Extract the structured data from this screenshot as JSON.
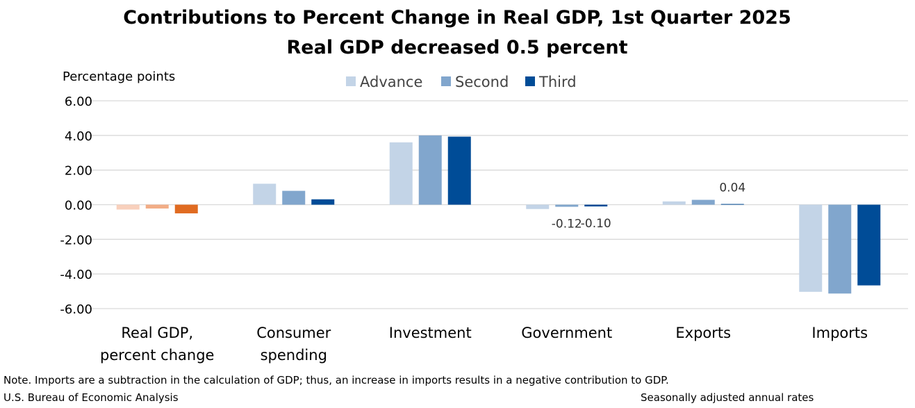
{
  "chart_data": {
    "type": "bar",
    "title": "Contributions to Percent Change in Real GDP, 1st Quarter 2025",
    "subtitle": "Real GDP decreased 0.5 percent",
    "ylabel": "Percentage points",
    "ylim": [
      -6,
      6
    ],
    "yticks": [
      "6.00",
      "4.00",
      "2.00",
      "0.00",
      "-2.00",
      "-4.00",
      "-6.00"
    ],
    "grid": true,
    "legend_position": "top",
    "categories": [
      [
        "Real GDP,",
        "percent change"
      ],
      [
        "Consumer",
        "spending"
      ],
      [
        "Investment"
      ],
      [
        "Government"
      ],
      [
        "Exports"
      ],
      [
        "Imports"
      ]
    ],
    "series": [
      {
        "name": "Advance",
        "color": "#c3d4e7",
        "values": [
          -0.28,
          1.21,
          3.6,
          -0.25,
          0.19,
          -5.03
        ]
      },
      {
        "name": "Second",
        "color": "#81a6cd",
        "values": [
          -0.22,
          0.8,
          4.0,
          -0.12,
          0.28,
          -5.13
        ]
      },
      {
        "name": "Third",
        "color": "#004c97",
        "values": [
          -0.5,
          0.31,
          3.93,
          -0.1,
          0.04,
          -4.66
        ]
      }
    ],
    "gdp_colors": [
      "#f8d0bc",
      "#f2ad86",
      "#e06b21"
    ],
    "data_labels": [
      {
        "category": 3,
        "series": 1,
        "text": "-0.12"
      },
      {
        "category": 3,
        "series": 2,
        "text": "-0.10"
      },
      {
        "category": 4,
        "series": 2,
        "text": "0.04"
      }
    ]
  },
  "footer": {
    "note": "Note. Imports are a subtraction in the calculation of GDP; thus, an increase in imports results in a negative contribution to GDP.",
    "source": "U.S. Bureau of Economic Analysis",
    "rates": "Seasonally adjusted annual rates"
  }
}
